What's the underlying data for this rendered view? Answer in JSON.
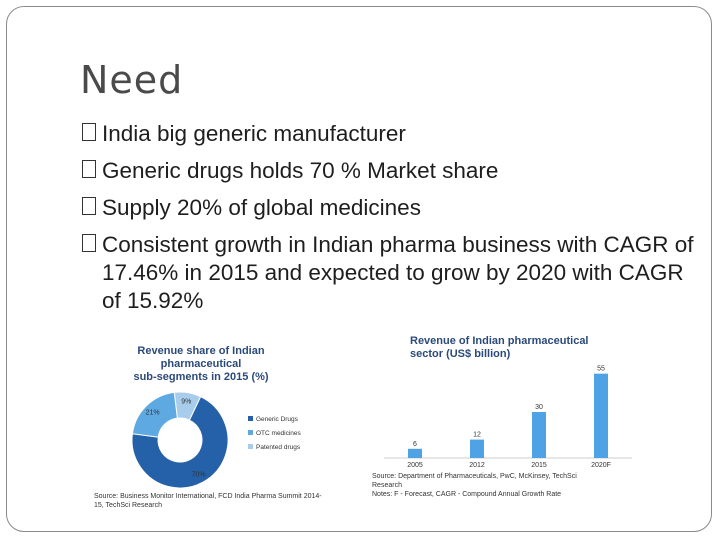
{
  "slide": {
    "title": "Need",
    "bullets": [
      "India big generic manufacturer",
      "Generic drugs holds 70  % Market share",
      "Supply 20% of global medicines",
      "Consistent growth in Indian pharma business with CAGR of 17.46% in 2015 and expected to grow by 2020 with CAGR of 15.92%"
    ]
  },
  "figures": {
    "left": {
      "title_lines": [
        "Revenue share of Indian",
        "pharmaceutical",
        "sub-segments in 2015 (%)"
      ],
      "source_lines": [
        "Source: Business Monitor International, FCD India Pharma Summit 2014-",
        "15, TechSci Research"
      ]
    },
    "right": {
      "title_lines": [
        "Revenue of Indian pharmaceutical",
        "sector (US$ billion)"
      ],
      "source_lines": [
        "Source: Department of Pharmaceuticals, PwC, McKinsey, TechSci",
        "Research",
        "Notes: F - Forecast, CAGR - Compound Annual Growth Rate"
      ]
    }
  },
  "chart_data": [
    {
      "type": "pie",
      "title": "Revenue share of Indian pharmaceutical sub-segments in 2015 (%)",
      "categories": [
        "Generic Drugs",
        "OTC medicines",
        "Patented drugs"
      ],
      "values": [
        70,
        21,
        9
      ],
      "value_labels": [
        "70%",
        "21%",
        "9%"
      ],
      "colors": [
        "#2461a8",
        "#5fa9e3",
        "#a8ccec"
      ],
      "legend": "right"
    },
    {
      "type": "bar",
      "title": "Revenue of Indian pharmaceutical sector (US$ billion)",
      "categories": [
        "2005",
        "2012",
        "2015",
        "2020F"
      ],
      "values": [
        6,
        12,
        30,
        55
      ],
      "ylim": [
        0,
        60
      ],
      "color": "#4fa3e4",
      "grid": false
    }
  ]
}
